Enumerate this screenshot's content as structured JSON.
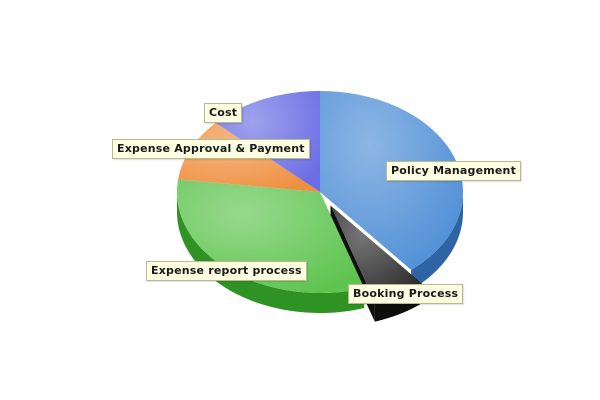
{
  "chart_data": {
    "type": "pie",
    "style": "3d-exploded",
    "series": [
      {
        "label": "Policy Management",
        "value": 39,
        "color": "#4f8fd6",
        "dark": "#2f64a4",
        "exploded": false
      },
      {
        "label": "Booking Process",
        "value": 6,
        "color": "#2c2c2c",
        "dark": "#0e0e0e",
        "exploded": true
      },
      {
        "label": "Expense report process",
        "value": 32,
        "color": "#5fc44f",
        "dark": "#2f9324",
        "exploded": false
      },
      {
        "label": "Expense Approval & Payment",
        "value": 10,
        "color": "#ef8f3f",
        "dark": "#c0681f",
        "exploded": false
      },
      {
        "label": "Cost",
        "value": 13,
        "color": "#6b6ee4",
        "dark": "#4245b0",
        "exploded": false
      }
    ],
    "legend": "none"
  }
}
